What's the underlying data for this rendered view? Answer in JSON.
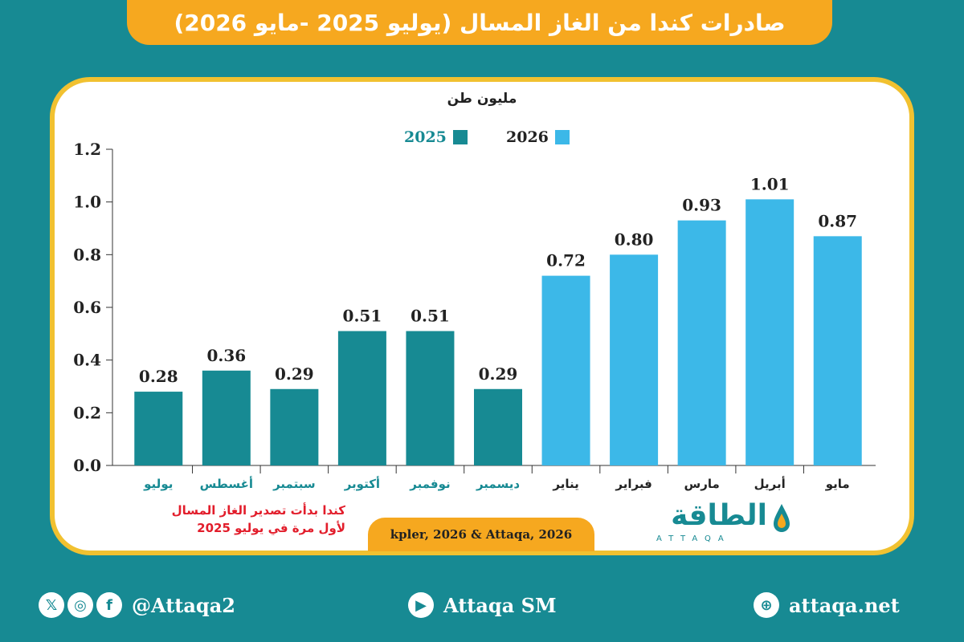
{
  "header": {
    "title": "صادرات كندا من الغاز المسال (يوليو 2025 -مايو 2026)"
  },
  "chart_data": {
    "type": "bar",
    "title": "صادرات كندا من الغاز المسال (يوليو 2025 -مايو 2026)",
    "ylabel": "مليون طن",
    "ylim": [
      0,
      1.2
    ],
    "yticks": [
      "0.0",
      "0.2",
      "0.4",
      "0.6",
      "0.8",
      "1.0",
      "1.2"
    ],
    "grid": false,
    "legend_position": "top-center",
    "categories": [
      "يوليو",
      "أغسطس",
      "سبتمبر",
      "أكتوبر",
      "نوفمبر",
      "ديسمبر",
      "يناير",
      "فبراير",
      "مارس",
      "أبريل",
      "مايو"
    ],
    "series": [
      {
        "name": "2025",
        "color": "#178a93",
        "values": [
          0.28,
          0.36,
          0.29,
          0.51,
          0.51,
          0.29,
          null,
          null,
          null,
          null,
          null
        ]
      },
      {
        "name": "2026",
        "color": "#3cb8e8",
        "values": [
          null,
          null,
          null,
          null,
          null,
          null,
          0.72,
          0.8,
          0.93,
          1.01,
          0.87
        ]
      }
    ],
    "data_labels": [
      "0.28",
      "0.36",
      "0.29",
      "0.51",
      "0.51",
      "0.29",
      "0.72",
      "0.80",
      "0.93",
      "1.01",
      "0.87"
    ]
  },
  "note": {
    "line1": "كندا بدأت تصدير الغاز المسال",
    "line2": "لأول مرة في يوليو 2025"
  },
  "source": "kpler, 2026 & Attaqa, 2026",
  "logo": {
    "arabic": "الطاقة",
    "english": "ATTAQA"
  },
  "footer": {
    "social_handle": "@Attaqa2",
    "youtube": "Attaqa SM",
    "website": "attaqa.net"
  },
  "colors": {
    "teal": "#178a93",
    "blue": "#3cb8e8",
    "orange": "#f6a81f",
    "gold": "#f1c130",
    "red": "#e21d2b"
  }
}
